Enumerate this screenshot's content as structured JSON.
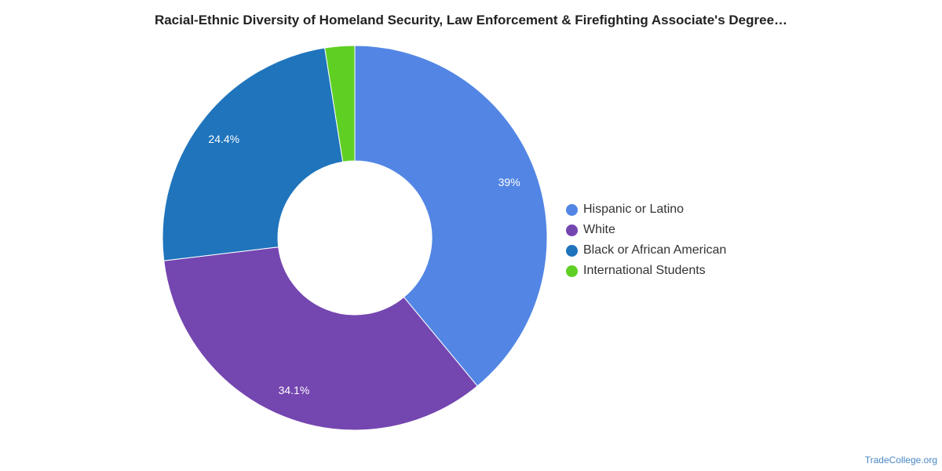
{
  "chart_data": {
    "type": "pie",
    "title": "Racial-Ethnic Diversity of Homeland Security, Law Enforcement & Firefighting Associate's Degree…",
    "legend_position": "right",
    "slices": [
      {
        "label": "Hispanic or Latino",
        "value": 39.0,
        "value_label": "39%",
        "color": "#5386e4"
      },
      {
        "label": "White",
        "value": 34.1,
        "value_label": "34.1%",
        "color": "#7446b0"
      },
      {
        "label": "Black or African American",
        "value": 24.4,
        "value_label": "24.4%",
        "color": "#1f74bc"
      },
      {
        "label": "International Students",
        "value": 2.5,
        "value_label": "",
        "color": "#5fcf24"
      }
    ]
  },
  "footer": {
    "source": "TradeCollege.org"
  }
}
